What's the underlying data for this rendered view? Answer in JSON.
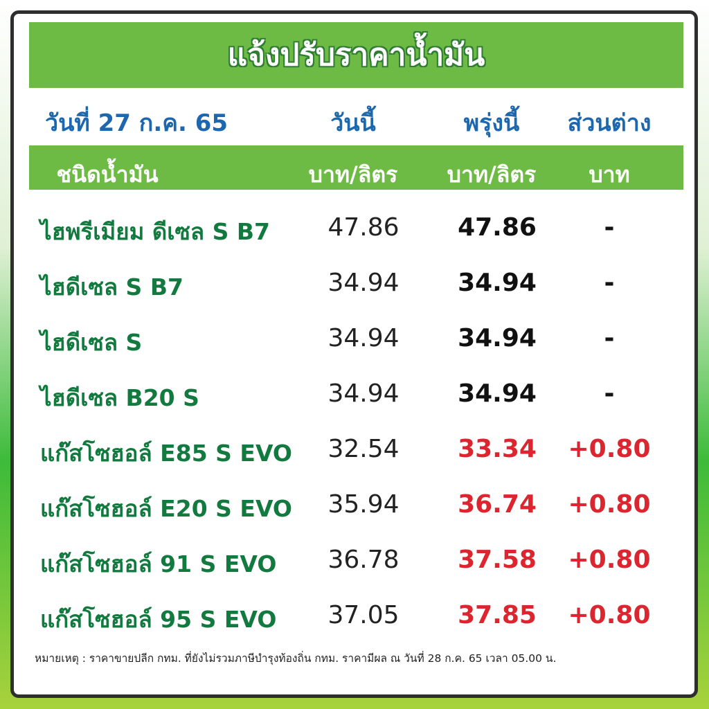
{
  "header": {
    "title": "แจ้งปรับราคาน้ำมัน",
    "date": "วันที่ 27 ก.ค. 65",
    "col_today": "วันนี้",
    "col_tomorrow": "พรุ่งนี้",
    "col_diff": "ส่วนต่าง"
  },
  "table": {
    "columns": [
      "ชนิดน้ำมัน",
      "บาท/ลิตร",
      "บาท/ลิตร",
      "บาท"
    ],
    "rows": [
      [
        "ไฮพรีเมียม ดีเซล S B7",
        "47.86",
        "47.86",
        "-"
      ],
      [
        "ไฮดีเซล S B7",
        "34.94",
        "34.94",
        "-"
      ],
      [
        "ไฮดีเซล S",
        "34.94",
        "34.94",
        "-"
      ],
      [
        "ไฮดีเซล B20 S",
        "34.94",
        "34.94",
        "-"
      ],
      [
        "แก๊สโซฮอล์ E85 S EVO",
        "32.54",
        "33.34",
        "+0.80"
      ],
      [
        "แก๊สโซฮอล์ E20 S EVO",
        "35.94",
        "36.74",
        "+0.80"
      ],
      [
        "แก๊สโซฮอล์ 91 S EVO",
        "36.78",
        "37.58",
        "+0.80"
      ],
      [
        "แก๊สโซฮอล์ 95 S EVO",
        "37.05",
        "37.85",
        "+0.80"
      ]
    ]
  },
  "footnote": "หมายเหตุ :  ราคาขายปลีก กทม. ที่ยังไม่รวมภาษีบำรุงท้องถิ่น กทม.  ราคามีผล ณ วันที่ 28 ก.ค. 65 เวลา 05.00 น."
}
